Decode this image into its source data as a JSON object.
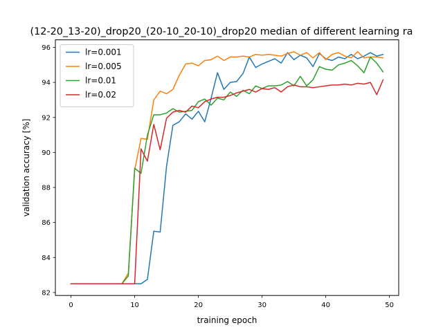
{
  "chart_data": {
    "type": "line",
    "title": "(12-20_13-20)_drop20_(20-10_20-10)_drop20     median of different learning ra",
    "xlabel": "training epoch",
    "ylabel": "validation accuracy [%]",
    "xlim": [
      -2.45,
      51.45
    ],
    "ylim": [
      81.83,
      96.43
    ],
    "xticks": [
      0,
      10,
      20,
      30,
      40,
      50
    ],
    "yticks": [
      82,
      84,
      86,
      88,
      90,
      92,
      94,
      96
    ],
    "grid": false,
    "legend_position": "upper-left",
    "x": [
      0,
      1,
      2,
      3,
      4,
      5,
      6,
      7,
      8,
      9,
      10,
      11,
      12,
      13,
      14,
      15,
      16,
      17,
      18,
      19,
      20,
      21,
      22,
      23,
      24,
      25,
      26,
      27,
      28,
      29,
      30,
      31,
      32,
      33,
      34,
      35,
      36,
      37,
      38,
      39,
      40,
      41,
      42,
      43,
      44,
      45,
      46,
      47,
      48,
      49
    ],
    "series": [
      {
        "name": "lr=0.001",
        "color": "#1f77b4",
        "values": [
          82.5,
          82.5,
          82.5,
          82.5,
          82.5,
          82.5,
          82.5,
          82.5,
          82.5,
          82.5,
          82.5,
          82.5,
          82.75,
          85.5,
          85.45,
          89.2,
          91.55,
          91.75,
          92.2,
          91.9,
          92.35,
          91.75,
          93.1,
          94.55,
          93.6,
          94.0,
          94.05,
          94.5,
          95.45,
          94.85,
          95.05,
          95.2,
          95.35,
          95.1,
          95.7,
          95.3,
          95.55,
          95.4,
          94.9,
          95.65,
          95.35,
          95.25,
          95.45,
          95.35,
          95.6,
          95.35,
          95.5,
          95.7,
          95.5,
          95.6
        ]
      },
      {
        "name": "lr=0.005",
        "color": "#ff7f0e",
        "values": [
          82.5,
          82.5,
          82.5,
          82.5,
          82.5,
          82.5,
          82.5,
          82.5,
          82.5,
          83.1,
          89.0,
          90.8,
          90.75,
          93.0,
          93.5,
          93.35,
          93.6,
          94.4,
          95.05,
          95.1,
          94.95,
          95.25,
          95.3,
          95.5,
          95.25,
          95.45,
          95.45,
          95.5,
          95.45,
          95.6,
          95.55,
          95.6,
          95.55,
          95.5,
          95.65,
          95.75,
          95.55,
          95.7,
          95.4,
          95.7,
          95.3,
          95.6,
          95.7,
          95.5,
          95.4,
          95.75,
          95.4,
          95.45,
          95.45,
          95.4
        ]
      },
      {
        "name": "lr=0.01",
        "color": "#2ca02c",
        "values": [
          82.5,
          82.5,
          82.5,
          82.5,
          82.5,
          82.5,
          82.5,
          82.5,
          82.5,
          82.95,
          89.1,
          88.8,
          91.0,
          92.15,
          92.15,
          92.25,
          92.5,
          92.3,
          92.35,
          92.4,
          92.9,
          93.05,
          92.7,
          93.1,
          93.0,
          93.45,
          93.2,
          93.55,
          93.35,
          93.8,
          93.65,
          93.8,
          93.8,
          93.85,
          94.05,
          93.8,
          94.35,
          93.8,
          94.15,
          94.9,
          94.75,
          94.7,
          95.0,
          95.1,
          95.25,
          94.95,
          94.55,
          95.45,
          95.1,
          94.6
        ]
      },
      {
        "name": "lr=0.02",
        "color": "#d62728",
        "values": [
          82.5,
          82.5,
          82.5,
          82.5,
          82.5,
          82.5,
          82.5,
          82.5,
          82.5,
          82.5,
          82.5,
          90.2,
          89.5,
          91.6,
          90.15,
          91.95,
          92.3,
          92.4,
          92.3,
          92.65,
          92.55,
          92.9,
          93.05,
          93.15,
          93.15,
          93.25,
          93.4,
          93.5,
          93.6,
          93.45,
          93.65,
          93.6,
          93.7,
          93.45,
          93.75,
          93.85,
          93.75,
          93.75,
          93.7,
          93.75,
          93.8,
          93.85,
          93.85,
          93.9,
          93.85,
          93.95,
          93.9,
          94.0,
          93.3,
          94.15
        ]
      }
    ]
  }
}
